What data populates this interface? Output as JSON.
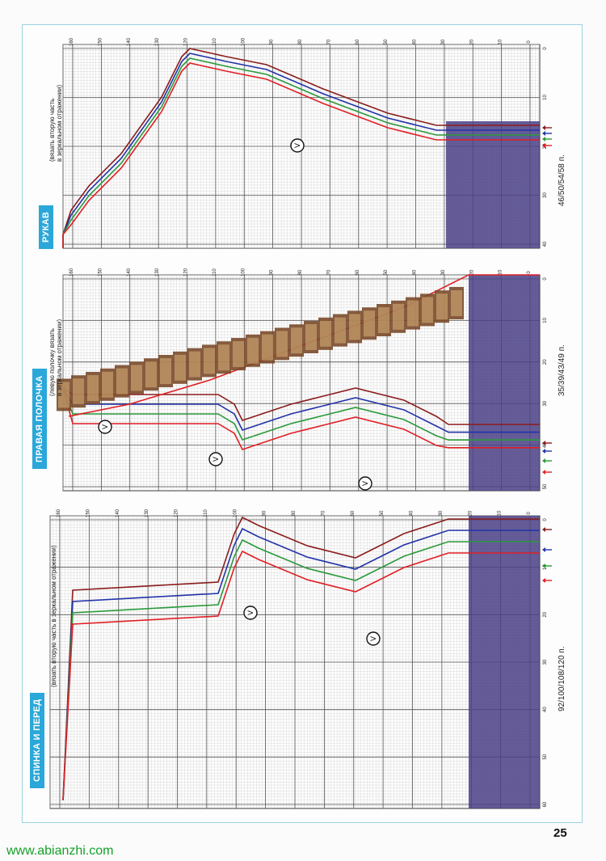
{
  "panels": [
    {
      "id": "sleeve",
      "title": "РУКАВ",
      "note_lines": [
        "(вязать вторую часть",
        "в зеркальном отражении)"
      ],
      "stitch_count": "46/50/54/58 п.",
      "row_ticks": [
        "160",
        "150",
        "140",
        "130",
        "120",
        "110",
        "100",
        "90",
        "80",
        "70",
        "60",
        "50",
        "40",
        "30",
        "20",
        "10",
        "0"
      ],
      "stitch_ticks": [
        "0",
        "10",
        "20",
        "30",
        "40"
      ]
    },
    {
      "id": "right-front",
      "title": "ПРАВАЯ ПОЛОЧКА",
      "note_lines": [
        "(левую полочку вязать",
        "в зеркальном отражении)"
      ],
      "stitch_count": "35/39/43/49 п.",
      "row_ticks": [
        "160",
        "150",
        "140",
        "130",
        "120",
        "110",
        "100",
        "90",
        "80",
        "70",
        "60",
        "50",
        "40",
        "30",
        "20",
        "10",
        "0"
      ],
      "stitch_ticks": [
        "0",
        "10",
        "20",
        "30",
        "40",
        "50"
      ]
    },
    {
      "id": "back-front",
      "title": "СПИНКА И ПЕРЕД",
      "note_lines": [
        "(вязать вторую часть в зеркальном отражении)"
      ],
      "stitch_count": "92/100/108/120 п.",
      "row_ticks": [
        "160",
        "150",
        "140",
        "130",
        "120",
        "110",
        "100",
        "90",
        "80",
        "70",
        "60",
        "50",
        "40",
        "30",
        "20",
        "10",
        "0"
      ],
      "stitch_ticks": [
        "0",
        "10",
        "20",
        "30",
        "40",
        "50",
        "60"
      ]
    }
  ],
  "size_colors": [
    "#8b1c1c",
    "#2233a8",
    "#2a9a3a",
    "#e01f25"
  ],
  "rib_color": "#4a3f86",
  "button_band_color": "#7a4a2a",
  "page_number": "25",
  "watermark": "www.abianzhi.com"
}
